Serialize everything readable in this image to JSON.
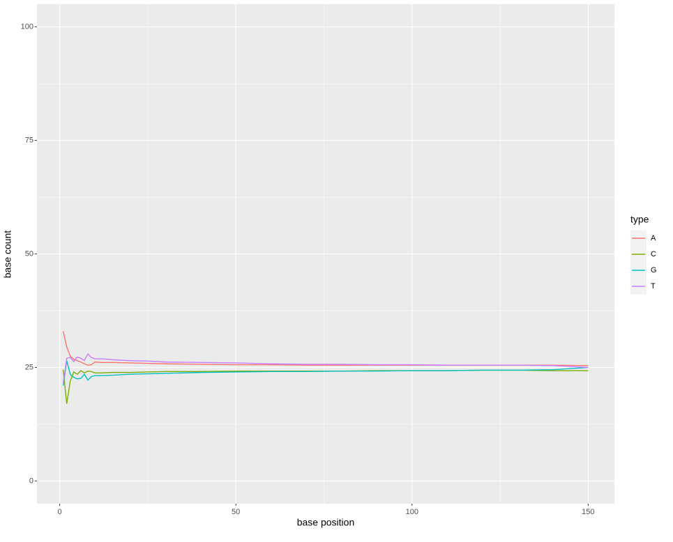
{
  "chart_data": {
    "type": "line",
    "x_label": "base position",
    "y_label": "base count",
    "legend_title": "type",
    "x": [
      1,
      2,
      3,
      4,
      5,
      6,
      7,
      8,
      9,
      10,
      12,
      15,
      20,
      25,
      30,
      40,
      50,
      60,
      70,
      80,
      90,
      100,
      110,
      120,
      130,
      140,
      150
    ],
    "series": [
      {
        "name": "A",
        "color": "#F8766D",
        "values": [
          33,
          29.5,
          27.5,
          26.8,
          26.5,
          26.2,
          25.8,
          25.5,
          25.6,
          26.2,
          26.1,
          26.1,
          26,
          25.9,
          25.8,
          25.7,
          25.6,
          25.6,
          25.5,
          25.5,
          25.5,
          25.5,
          25.5,
          25.5,
          25.5,
          25.5,
          25.4
        ]
      },
      {
        "name": "C",
        "color": "#7CAE00",
        "values": [
          24.5,
          17,
          22,
          24,
          23.5,
          24.3,
          23.8,
          24.2,
          24.1,
          23.8,
          23.8,
          23.9,
          23.9,
          24,
          24.1,
          24.1,
          24.2,
          24.2,
          24.2,
          24.2,
          24.3,
          24.3,
          24.3,
          24.4,
          24.4,
          24.3,
          24.3
        ]
      },
      {
        "name": "G",
        "color": "#00BFC4",
        "values": [
          21,
          26.5,
          23.5,
          22.8,
          22.5,
          22.6,
          23.5,
          22.2,
          23,
          23.2,
          23.2,
          23.3,
          23.5,
          23.6,
          23.7,
          23.9,
          24,
          24.1,
          24.1,
          24.2,
          24.2,
          24.3,
          24.3,
          24.4,
          24.4,
          24.5,
          25
        ]
      },
      {
        "name": "T",
        "color": "#C77CFF",
        "values": [
          21.5,
          27,
          27.2,
          26.3,
          27.3,
          27,
          26.5,
          28,
          27.2,
          26.9,
          26.9,
          26.7,
          26.5,
          26.4,
          26.2,
          26.1,
          26,
          25.8,
          25.7,
          25.7,
          25.6,
          25.6,
          25.5,
          25.5,
          25.5,
          25.4,
          25
        ]
      }
    ],
    "xlim": [
      -6.45,
      157.45
    ],
    "xticks": [
      0,
      50,
      100,
      150
    ],
    "x_minor_ticks": [
      25,
      75,
      125
    ],
    "ylim": [
      -5,
      105
    ],
    "yticks": [
      0,
      25,
      50,
      75,
      100
    ],
    "y_minor_ticks": [
      12.5,
      37.5,
      62.5,
      87.5
    ],
    "grid": true,
    "legend_position": "right"
  }
}
